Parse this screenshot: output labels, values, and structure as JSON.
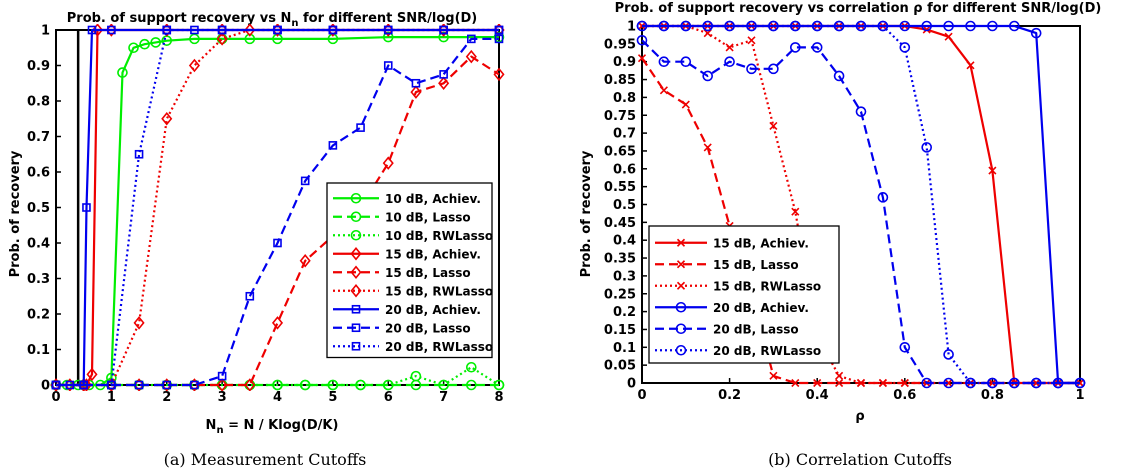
{
  "chart_data": [
    {
      "type": "line",
      "title": "Prob. of support recovery vs N_n for different SNR/log(D)",
      "title_main": "Prob. of support recovery vs N",
      "title_sub": "n",
      "title_tail": " for different SNR/log(D)",
      "xlabel": "N_n = N / Klog(D/K)",
      "xlabel_main": "N",
      "xlabel_sub": "n",
      "xlabel_tail": " = N / Klog(D/K)",
      "ylabel": "Prob. of recovery",
      "caption": "(a)  Measurement Cutoffs",
      "xlim": [
        0,
        8
      ],
      "ylim": [
        0,
        1
      ],
      "xticks": [
        0,
        1,
        2,
        3,
        4,
        5,
        6,
        7,
        8
      ],
      "yticks": [
        0,
        0.1,
        0.2,
        0.3,
        0.4,
        0.5,
        0.6,
        0.7,
        0.8,
        0.9,
        1
      ],
      "ytick_labels": [
        "0",
        "0.1",
        "0.2",
        "0.3",
        "0.4",
        "0.5",
        "0.6",
        "0.7",
        "0.8",
        "0.9",
        "1"
      ],
      "grid": false,
      "legend_position": "right",
      "series": [
        {
          "name": "10 dB, Achiev.",
          "color": "#00ee00",
          "dash": "solid",
          "marker": "circle",
          "x": [
            0,
            0.2,
            0.4,
            0.6,
            0.8,
            1.0,
            1.2,
            1.4,
            1.6,
            1.8,
            2.0,
            2.5,
            3.0,
            3.5,
            4.0,
            5.0,
            6.0,
            7.0,
            8.0
          ],
          "y": [
            0,
            0,
            0,
            0,
            0,
            0.02,
            0.88,
            0.95,
            0.96,
            0.965,
            0.97,
            0.975,
            0.975,
            0.975,
            0.975,
            0.975,
            0.98,
            0.98,
            0.98
          ]
        },
        {
          "name": "10 dB, Lasso",
          "color": "#00ee00",
          "dash": "dashed",
          "marker": "circle",
          "x": [
            0,
            0.5,
            1.0,
            1.5,
            2.0,
            2.5,
            3.0,
            3.5,
            4.0,
            4.5,
            5.0,
            5.5,
            6.0,
            6.5,
            7.0,
            7.5,
            8.0
          ],
          "y": [
            0,
            0,
            0,
            0,
            0,
            0,
            0,
            0,
            0,
            0,
            0,
            0,
            0,
            0,
            0,
            0,
            0
          ]
        },
        {
          "name": "10 dB, RWLasso",
          "color": "#00ee00",
          "dash": "dotted",
          "marker": "circle",
          "x": [
            0,
            0.5,
            1.0,
            1.5,
            2.0,
            2.5,
            3.0,
            3.5,
            4.0,
            4.5,
            5.0,
            5.5,
            6.0,
            6.5,
            7.0,
            7.5,
            8.0
          ],
          "y": [
            0,
            0,
            0,
            0,
            0,
            0,
            0,
            0,
            0,
            0,
            0,
            0,
            0,
            0.025,
            0,
            0.05,
            0
          ]
        },
        {
          "name": "15 dB, Achiev.",
          "color": "#ee0000",
          "dash": "solid",
          "marker": "diamond",
          "x": [
            0,
            0.25,
            0.5,
            0.55,
            0.65,
            0.75,
            1.0,
            2.0,
            3.0,
            4.0,
            5.0,
            6.0,
            7.0,
            8.0
          ],
          "y": [
            0,
            0,
            0,
            0,
            0.03,
            1,
            1,
            1,
            1,
            1,
            1,
            1,
            1,
            1
          ]
        },
        {
          "name": "15 dB, Lasso",
          "color": "#ee0000",
          "dash": "dashed",
          "marker": "diamond",
          "x": [
            0,
            0.5,
            1.0,
            1.5,
            2.0,
            2.5,
            3.0,
            3.5,
            4.0,
            4.5,
            5.0,
            5.5,
            6.0,
            6.5,
            7.0,
            7.5,
            8.0
          ],
          "y": [
            0,
            0,
            0,
            0,
            0,
            0,
            0,
            0,
            0.175,
            0.35,
            0.42,
            0.5,
            0.625,
            0.825,
            0.85,
            0.925,
            0.875
          ]
        },
        {
          "name": "15 dB, RWLasso",
          "color": "#ee0000",
          "dash": "dotted",
          "marker": "diamond",
          "x": [
            0,
            0.5,
            1.0,
            1.5,
            2.0,
            2.5,
            3.0,
            3.5,
            4.0,
            5.0,
            6.0,
            7.0,
            8.0
          ],
          "y": [
            0,
            0,
            0,
            0.175,
            0.75,
            0.9,
            0.975,
            1,
            1,
            1,
            1,
            1,
            1
          ]
        },
        {
          "name": "20 dB, Achiev.",
          "color": "#0000ee",
          "dash": "solid",
          "marker": "square",
          "x": [
            0,
            0.25,
            0.5,
            0.55,
            0.65,
            1.0,
            2.0,
            3.0,
            4.0,
            5.0,
            6.0,
            7.0,
            8.0
          ],
          "y": [
            0,
            0,
            0,
            0.5,
            1,
            1,
            1,
            1,
            1,
            1,
            1,
            1,
            1
          ]
        },
        {
          "name": "20 dB, Lasso",
          "color": "#0000ee",
          "dash": "dashed",
          "marker": "square",
          "x": [
            0,
            0.5,
            1.0,
            1.5,
            2.0,
            2.5,
            3.0,
            3.5,
            4.0,
            4.5,
            5.0,
            5.5,
            6.0,
            6.5,
            7.0,
            7.5,
            8.0
          ],
          "y": [
            0,
            0,
            0,
            0,
            0,
            0,
            0.025,
            0.25,
            0.4,
            0.575,
            0.675,
            0.725,
            0.9,
            0.85,
            0.875,
            0.975,
            0.975
          ]
        },
        {
          "name": "20 dB, RWLasso",
          "color": "#0000ee",
          "dash": "dotted",
          "marker": "square",
          "x": [
            0,
            0.5,
            1.0,
            1.5,
            2.0,
            2.5,
            3.0,
            4.0,
            5.0,
            6.0,
            7.0,
            8.0
          ],
          "y": [
            0,
            0,
            0,
            0.65,
            1,
            1,
            1,
            1,
            1,
            1,
            1,
            1
          ]
        }
      ],
      "vertical_lines": [
        {
          "x": 0.4,
          "color": "#000000"
        }
      ]
    },
    {
      "type": "line",
      "title": "Prob. of support recovery vs correlation ρ for different SNR/log(D)",
      "xlabel": "ρ",
      "ylabel": "Prob. of recovery",
      "caption": "(b)  Correlation Cutoffs",
      "xlim": [
        0,
        1
      ],
      "ylim": [
        0,
        1
      ],
      "xticks": [
        0,
        0.2,
        0.4,
        0.6,
        0.8,
        1
      ],
      "xtick_labels": [
        "0",
        "0.2",
        "0.4",
        "0.6",
        "0.8",
        "1"
      ],
      "yticks": [
        0,
        0.05,
        0.1,
        0.15,
        0.2,
        0.25,
        0.3,
        0.35,
        0.4,
        0.45,
        0.5,
        0.55,
        0.6,
        0.65,
        0.7,
        0.75,
        0.8,
        0.85,
        0.9,
        0.95,
        1
      ],
      "ytick_labels": [
        "0",
        "0.05",
        "0.1",
        "0.15",
        "0.2",
        "0.25",
        "0.3",
        "0.35",
        "0.4",
        "0.45",
        "0.5",
        "0.55",
        "0.6",
        "0.65",
        "0.7",
        "0.75",
        "0.8",
        "0.85",
        "0.9",
        "0.95",
        "1"
      ],
      "grid": false,
      "legend_position": "left",
      "series": [
        {
          "name": "15 dB, Achiev.",
          "color": "#ee0000",
          "dash": "solid",
          "marker": "x",
          "x": [
            0,
            0.05,
            0.1,
            0.15,
            0.2,
            0.25,
            0.3,
            0.35,
            0.4,
            0.45,
            0.5,
            0.55,
            0.6,
            0.65,
            0.7,
            0.75,
            0.8,
            0.85,
            0.9,
            0.95,
            1.0
          ],
          "y": [
            1,
            1,
            1,
            1,
            1,
            1,
            1,
            1,
            1,
            1,
            1,
            1,
            1,
            0.99,
            0.97,
            0.89,
            0.595,
            0,
            0,
            0,
            0
          ]
        },
        {
          "name": "15 dB, Lasso",
          "color": "#ee0000",
          "dash": "dashed",
          "marker": "x",
          "x": [
            0,
            0.05,
            0.1,
            0.15,
            0.2,
            0.25,
            0.3,
            0.35,
            0.4,
            0.45,
            0.5,
            0.55,
            0.6,
            0.65,
            0.7,
            0.75,
            0.8,
            0.85,
            0.9,
            0.95,
            1.0
          ],
          "y": [
            0.91,
            0.82,
            0.78,
            0.66,
            0.44,
            0.25,
            0.02,
            0,
            0,
            0,
            0,
            0,
            0,
            0,
            0,
            0,
            0,
            0,
            0,
            0,
            0
          ]
        },
        {
          "name": "15 dB, RWLasso",
          "color": "#ee0000",
          "dash": "dotted",
          "marker": "x",
          "x": [
            0,
            0.05,
            0.1,
            0.15,
            0.2,
            0.25,
            0.3,
            0.35,
            0.4,
            0.45,
            0.5,
            0.55,
            0.6,
            0.65,
            0.7,
            0.75,
            0.8,
            0.85,
            0.9,
            0.95,
            1.0
          ],
          "y": [
            1,
            1,
            1,
            0.98,
            0.94,
            0.96,
            0.72,
            0.48,
            0.13,
            0.02,
            0,
            0,
            0,
            0,
            0,
            0,
            0,
            0,
            0,
            0,
            0
          ]
        },
        {
          "name": "20 dB, Achiev.",
          "color": "#0000ee",
          "dash": "solid",
          "marker": "circle",
          "x": [
            0,
            0.05,
            0.1,
            0.15,
            0.2,
            0.25,
            0.3,
            0.35,
            0.4,
            0.45,
            0.5,
            0.55,
            0.6,
            0.65,
            0.7,
            0.75,
            0.8,
            0.85,
            0.9,
            0.95,
            1.0
          ],
          "y": [
            1,
            1,
            1,
            1,
            1,
            1,
            1,
            1,
            1,
            1,
            1,
            1,
            1,
            1,
            1,
            1,
            1,
            1,
            0.98,
            0,
            0
          ]
        },
        {
          "name": "20 dB, Lasso",
          "color": "#0000ee",
          "dash": "dashed",
          "marker": "circle",
          "x": [
            0,
            0.05,
            0.1,
            0.15,
            0.2,
            0.25,
            0.3,
            0.35,
            0.4,
            0.45,
            0.5,
            0.55,
            0.6,
            0.65,
            0.7,
            0.75,
            0.8,
            0.85,
            0.9,
            0.95,
            1.0
          ],
          "y": [
            0.96,
            0.9,
            0.9,
            0.86,
            0.9,
            0.88,
            0.88,
            0.94,
            0.94,
            0.86,
            0.76,
            0.52,
            0.1,
            0,
            0,
            0,
            0,
            0,
            0,
            0,
            0
          ]
        },
        {
          "name": "20 dB, RWLasso",
          "color": "#0000ee",
          "dash": "dotted",
          "marker": "circle",
          "x": [
            0,
            0.05,
            0.1,
            0.15,
            0.2,
            0.25,
            0.3,
            0.35,
            0.4,
            0.45,
            0.5,
            0.55,
            0.6,
            0.65,
            0.7,
            0.75,
            0.8,
            0.85,
            0.9,
            0.95,
            1.0
          ],
          "y": [
            1,
            1,
            1,
            1,
            1,
            1,
            1,
            1,
            1,
            1,
            1,
            1,
            0.94,
            0.66,
            0.08,
            0,
            0,
            0,
            0,
            0,
            0
          ]
        }
      ]
    }
  ]
}
